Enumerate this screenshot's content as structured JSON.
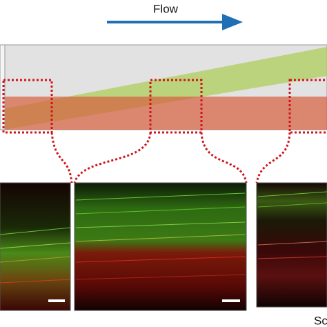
{
  "diagram": {
    "flow_label": "Flow",
    "scale_label": "Sc"
  }
}
